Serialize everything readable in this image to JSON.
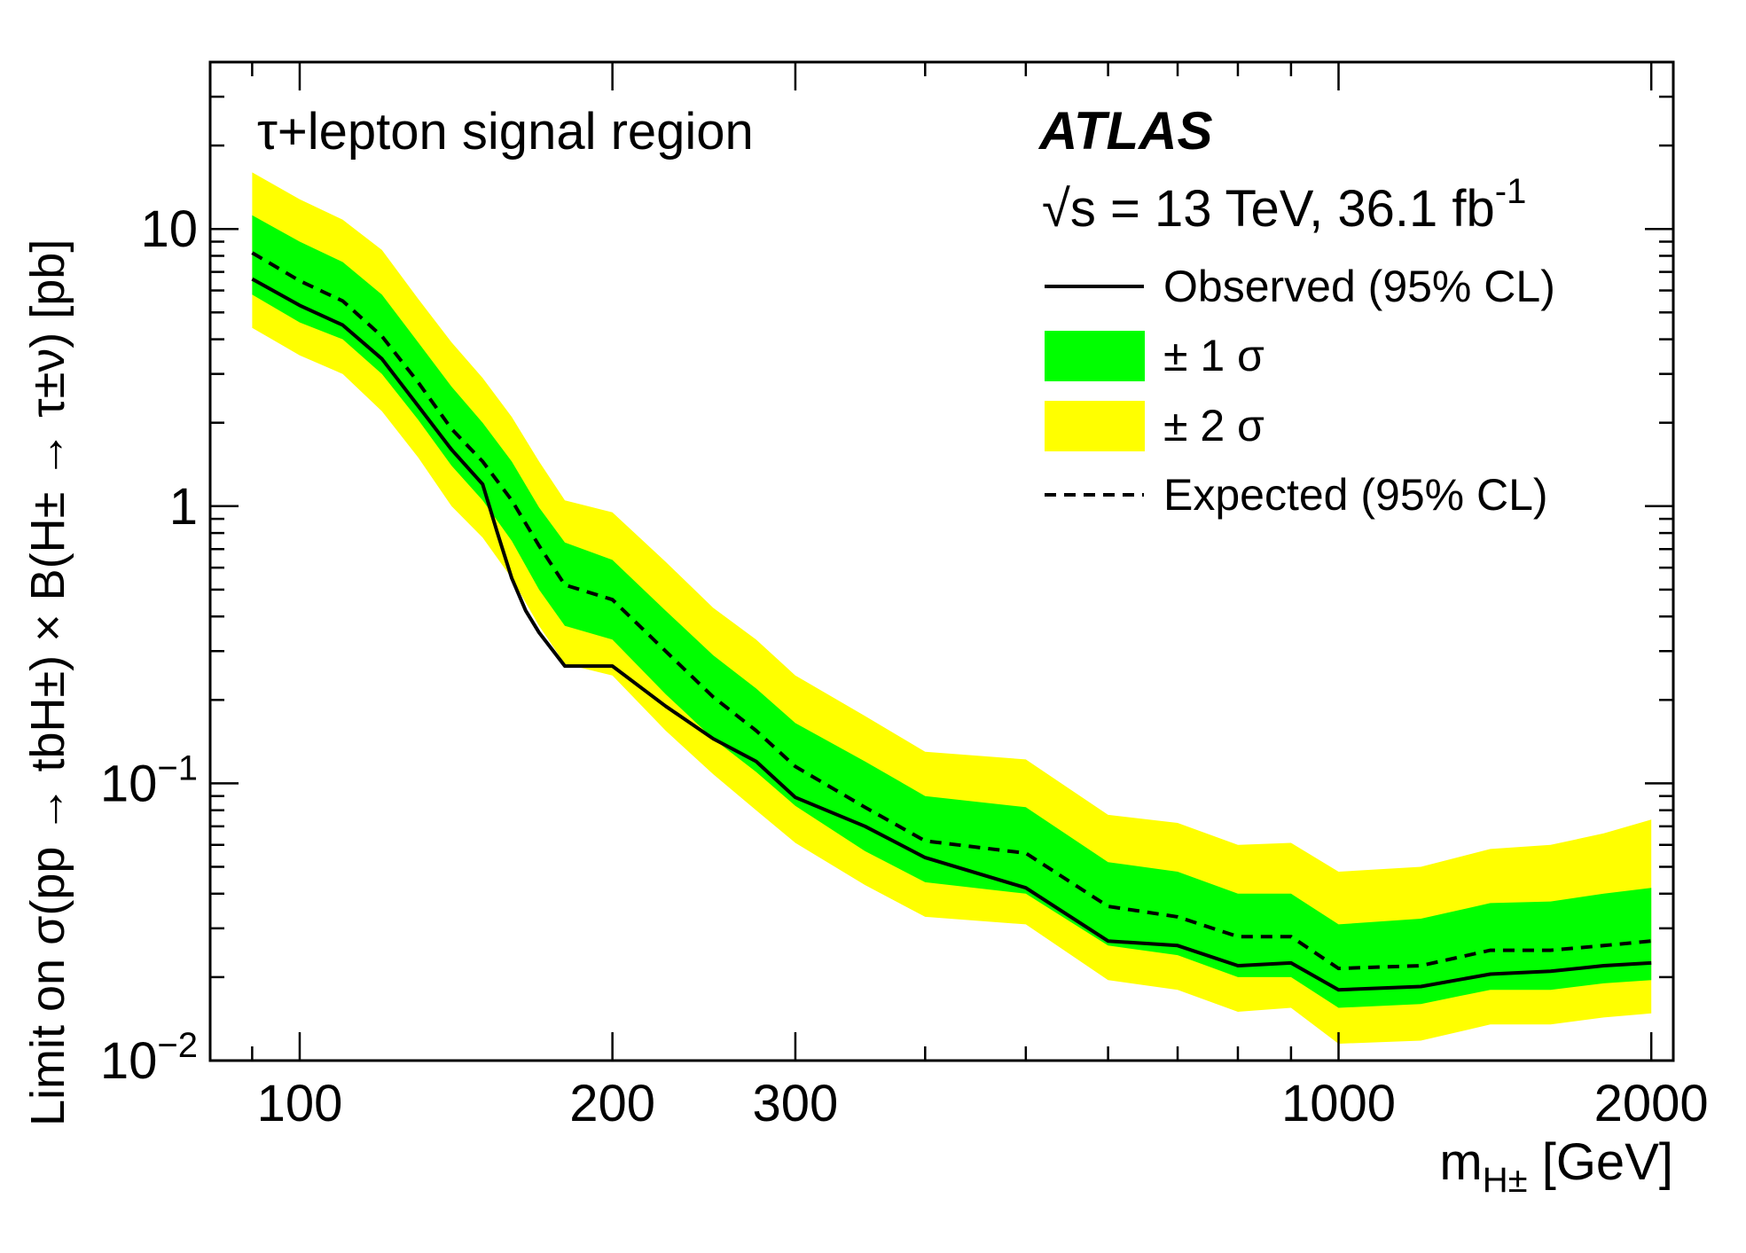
{
  "chart_data": {
    "type": "line",
    "annotation": "τ+lepton signal region",
    "experiment": "ATLAS",
    "energy_label": {
      "sqrt": "√s",
      "main": " = 13 TeV, 36.1 fb",
      "sup": "-1"
    },
    "xlabel": {
      "main": "m",
      "sub": "H±",
      "rest": " [GeV]"
    },
    "ylabel": "Limit on σ(pp → tbH±) × B(H± → τ±ν) [pb]",
    "xscale": "log",
    "yscale": "log",
    "xlim": [
      82,
      2100
    ],
    "ylim": [
      0.01,
      40
    ],
    "xticks": [
      {
        "value": 100,
        "label": "100"
      },
      {
        "value": 200,
        "label": "200"
      },
      {
        "value": 300,
        "label": "300"
      },
      {
        "value": 1000,
        "label": "1000"
      },
      {
        "value": 2000,
        "label": "2000"
      }
    ],
    "yticks": [
      {
        "value": 0.01,
        "base": "10",
        "exp": "−2"
      },
      {
        "value": 0.1,
        "base": "10",
        "exp": "−1"
      },
      {
        "value": 1,
        "base": "1",
        "exp": ""
      },
      {
        "value": 10,
        "base": "10",
        "exp": ""
      }
    ],
    "legend": {
      "position": "top-right",
      "observed": "Observed (95% CL)",
      "one_sigma": "± 1 σ",
      "two_sigma": "± 2 σ",
      "expected": "Expected (95% CL)"
    },
    "colors": {
      "one_sigma": "#00ff00",
      "two_sigma": "#ffff00",
      "line": "#000000"
    },
    "x": [
      90,
      100,
      110,
      120,
      130,
      140,
      150,
      160,
      170,
      180,
      200,
      225,
      250,
      275,
      300,
      350,
      400,
      500,
      600,
      700,
      800,
      900,
      1000,
      1200,
      1400,
      1600,
      1800,
      2000
    ],
    "observed": {
      "x": [
        90,
        100,
        110,
        120,
        130,
        140,
        150,
        155,
        160,
        165,
        170,
        180,
        200,
        225,
        250,
        275,
        300,
        350,
        400,
        500,
        600,
        700,
        800,
        900,
        1000,
        1200,
        1400,
        1600,
        1800,
        2000
      ],
      "y": [
        6.6,
        5.3,
        4.5,
        3.4,
        2.3,
        1.6,
        1.2,
        0.8,
        0.55,
        0.42,
        0.35,
        0.265,
        0.265,
        0.19,
        0.145,
        0.12,
        0.089,
        0.07,
        0.054,
        0.042,
        0.027,
        0.026,
        0.022,
        0.0225,
        0.018,
        0.0185,
        0.0205,
        0.021,
        0.022,
        0.0225
      ]
    },
    "expected": [
      8.2,
      6.5,
      5.5,
      4.1,
      2.8,
      1.9,
      1.45,
      1.05,
      0.72,
      0.52,
      0.46,
      0.3,
      0.205,
      0.155,
      0.115,
      0.082,
      0.062,
      0.056,
      0.036,
      0.033,
      0.028,
      0.028,
      0.0215,
      0.022,
      0.025,
      0.025,
      0.026,
      0.027
    ],
    "one_sigma_band": {
      "low": [
        5.8,
        4.6,
        4.0,
        3.0,
        2.05,
        1.4,
        1.05,
        0.75,
        0.5,
        0.37,
        0.33,
        0.21,
        0.145,
        0.11,
        0.083,
        0.057,
        0.044,
        0.04,
        0.026,
        0.024,
        0.02,
        0.02,
        0.0155,
        0.016,
        0.018,
        0.018,
        0.019,
        0.0195
      ],
      "high": [
        11.2,
        9.0,
        7.6,
        5.8,
        3.9,
        2.7,
        2.0,
        1.45,
        0.99,
        0.74,
        0.64,
        0.42,
        0.29,
        0.22,
        0.165,
        0.12,
        0.09,
        0.082,
        0.052,
        0.048,
        0.04,
        0.04,
        0.031,
        0.0325,
        0.037,
        0.0375,
        0.04,
        0.042
      ]
    },
    "two_sigma_band": {
      "low": [
        4.4,
        3.5,
        3.0,
        2.2,
        1.5,
        1.0,
        0.77,
        0.55,
        0.37,
        0.27,
        0.245,
        0.155,
        0.108,
        0.08,
        0.061,
        0.043,
        0.033,
        0.031,
        0.0195,
        0.018,
        0.015,
        0.0155,
        0.0115,
        0.0118,
        0.0135,
        0.0135,
        0.0143,
        0.0148
      ],
      "high": [
        16.0,
        12.8,
        10.8,
        8.4,
        5.6,
        3.9,
        2.9,
        2.1,
        1.45,
        1.05,
        0.95,
        0.63,
        0.43,
        0.33,
        0.245,
        0.175,
        0.13,
        0.122,
        0.077,
        0.072,
        0.06,
        0.061,
        0.048,
        0.05,
        0.058,
        0.06,
        0.066,
        0.074
      ]
    }
  }
}
